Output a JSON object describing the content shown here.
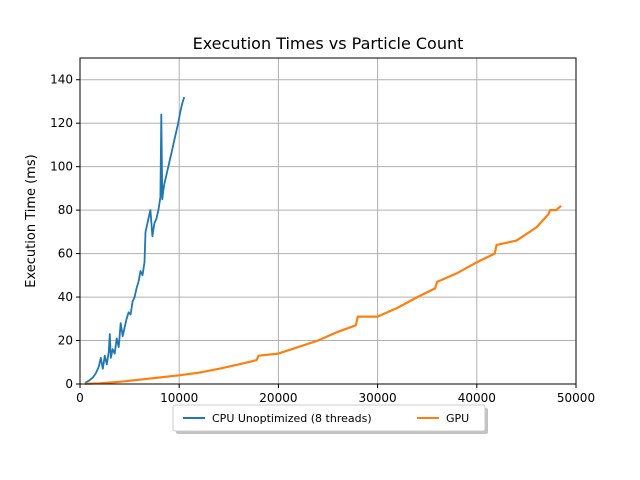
{
  "chart_data": {
    "type": "line",
    "title": "Execution Times vs Particle Count",
    "xlabel": "",
    "ylabel": "Execution Time (ms)",
    "xlim": [
      0,
      50000
    ],
    "ylim": [
      0,
      150
    ],
    "xticks": [
      0,
      10000,
      20000,
      30000,
      40000,
      50000
    ],
    "yticks": [
      0,
      20,
      40,
      60,
      80,
      100,
      120,
      140
    ],
    "grid": true,
    "legend_position": "bottom-center",
    "series": [
      {
        "name": "CPU Unoptimized (8 threads)",
        "color": "#1f77b4",
        "x": [
          500,
          900,
          1300,
          1600,
          1900,
          2100,
          2300,
          2500,
          2700,
          2900,
          3000,
          3100,
          3300,
          3500,
          3700,
          3900,
          4100,
          4300,
          4500,
          4700,
          4900,
          5100,
          5300,
          5500,
          5700,
          5900,
          6100,
          6300,
          6500,
          6600,
          6700,
          6900,
          7100,
          7300,
          7500,
          7700,
          7900,
          8100,
          8200,
          8300,
          8400,
          8500,
          8700,
          8900,
          9100,
          9300,
          9500,
          9700,
          9900,
          10100,
          10300,
          10500
        ],
        "y": [
          0.5,
          1.5,
          3,
          5,
          8,
          12,
          7,
          13,
          9,
          15,
          23,
          12,
          16,
          14,
          21,
          17,
          28,
          22,
          26,
          30,
          33,
          32,
          38,
          40,
          44,
          47,
          52,
          50,
          56,
          70,
          72,
          76,
          80,
          68,
          74,
          76,
          80,
          86,
          124,
          85,
          89,
          92,
          96,
          100,
          104,
          108,
          112,
          116,
          120,
          125,
          129,
          132
        ]
      },
      {
        "name": "GPU",
        "color": "#ff7f0e",
        "x": [
          500,
          2000,
          4000,
          6000,
          8000,
          10000,
          12000,
          14000,
          16000,
          17800,
          18000,
          20000,
          22000,
          24000,
          26000,
          27800,
          28000,
          30000,
          32000,
          34000,
          35800,
          36000,
          38000,
          40000,
          41800,
          42000,
          44000,
          46000,
          47200,
          47400,
          48000,
          48500
        ],
        "y": [
          0.1,
          0.3,
          1,
          2,
          3,
          4,
          5.2,
          7,
          9,
          11,
          13,
          14,
          17,
          20,
          24,
          27,
          31,
          31,
          35,
          40,
          44,
          47,
          51,
          56,
          60,
          64,
          66,
          72,
          78,
          80,
          80,
          82
        ]
      }
    ]
  }
}
